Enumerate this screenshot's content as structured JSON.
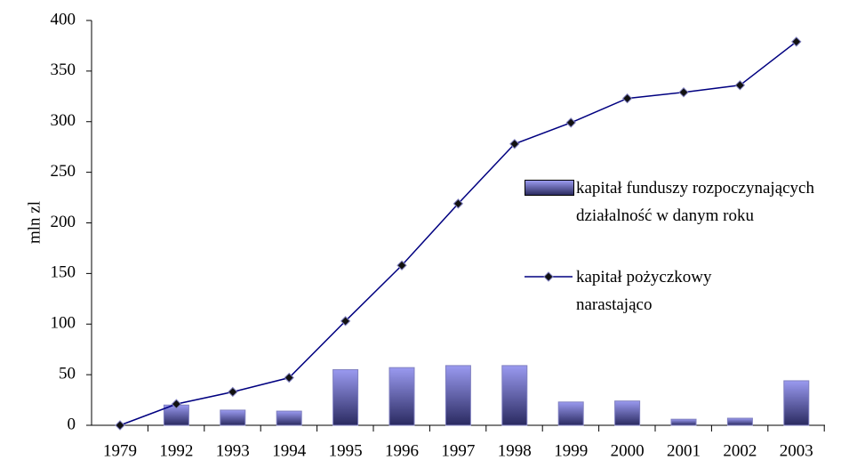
{
  "chart_data": {
    "type": "bar",
    "y_label": "mln zl",
    "categories": [
      "1979",
      "1992",
      "1993",
      "1994",
      "1995",
      "1996",
      "1997",
      "1998",
      "1999",
      "2000",
      "2001",
      "2002",
      "2003"
    ],
    "ylim": [
      0,
      400
    ],
    "yticks": [
      0,
      50,
      100,
      150,
      200,
      250,
      300,
      350,
      400
    ],
    "series": [
      {
        "name": "kapitał funduszy rozpoczynających działalność w danym roku",
        "type": "bar",
        "color": "#6b6bd0",
        "values": [
          0,
          20,
          15,
          14,
          55,
          57,
          59,
          59,
          23,
          24,
          6,
          7,
          44
        ]
      },
      {
        "name": "kapitał pożyczkowy narastająco",
        "type": "line",
        "color": "#000080",
        "values": [
          0,
          21,
          33,
          47,
          103,
          158,
          219,
          278,
          299,
          323,
          329,
          336,
          379
        ]
      }
    ]
  }
}
